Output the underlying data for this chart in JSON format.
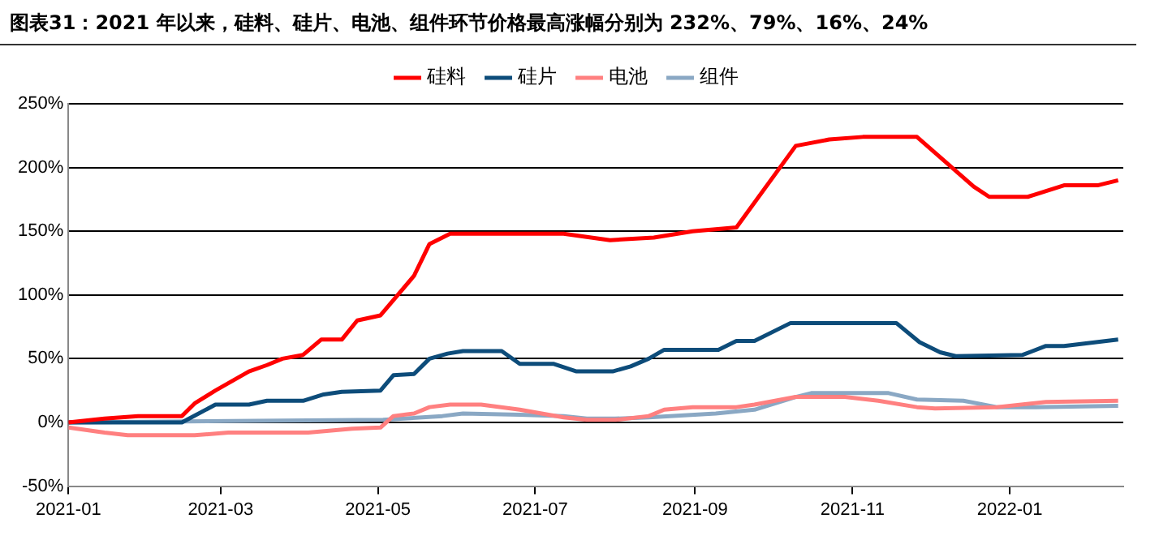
{
  "chart_data": {
    "type": "line",
    "title": "图表31：2021 年以来，硅料、硅片、电池、组件环节价格最高涨幅分别为 232%、79%、16%、24%",
    "series": [
      {
        "name": "硅料",
        "color": "#ff0000",
        "x": [
          "2021-01-01",
          "2021-01-15",
          "2021-01-28",
          "2021-02-14",
          "2021-02-19",
          "2021-02-27",
          "2021-03-12",
          "2021-03-19",
          "2021-03-25",
          "2021-04-02",
          "2021-04-09",
          "2021-04-17",
          "2021-04-23",
          "2021-05-02",
          "2021-05-15",
          "2021-05-21",
          "2021-05-29",
          "2021-06-29",
          "2021-07-12",
          "2021-07-30",
          "2021-08-16",
          "2021-08-31",
          "2021-09-17",
          "2021-10-10",
          "2021-10-23",
          "2021-11-05",
          "2021-11-26",
          "2021-12-18",
          "2021-12-24",
          "2022-01-08",
          "2022-01-22",
          "2022-02-04",
          "2022-02-12"
        ],
        "values": [
          0,
          3,
          5,
          5,
          15,
          25,
          40,
          45,
          50,
          53,
          65,
          65,
          80,
          84,
          115,
          140,
          148,
          148,
          148,
          143,
          145,
          150,
          153,
          217,
          222,
          224,
          224,
          185,
          177,
          177,
          186,
          186,
          190
        ]
      },
      {
        "name": "硅片",
        "color": "#0d4c7a",
        "x": [
          "2021-01-01",
          "2021-02-14",
          "2021-02-27",
          "2021-03-12",
          "2021-03-19",
          "2021-04-02",
          "2021-04-10",
          "2021-04-17",
          "2021-05-02",
          "2021-05-07",
          "2021-05-15",
          "2021-05-21",
          "2021-05-28",
          "2021-06-03",
          "2021-06-18",
          "2021-06-25",
          "2021-07-08",
          "2021-07-17",
          "2021-07-31",
          "2021-08-07",
          "2021-08-14",
          "2021-08-20",
          "2021-09-10",
          "2021-09-17",
          "2021-09-24",
          "2021-10-08",
          "2021-11-18",
          "2021-11-27",
          "2021-12-05",
          "2021-12-11",
          "2022-01-06",
          "2022-01-15",
          "2022-01-22",
          "2022-02-12"
        ],
        "values": [
          0,
          0,
          14,
          14,
          17,
          17,
          22,
          24,
          25,
          37,
          38,
          50,
          54,
          56,
          56,
          46,
          46,
          40,
          40,
          44,
          50,
          57,
          57,
          64,
          64,
          78,
          78,
          63,
          55,
          52,
          53,
          60,
          60,
          65
        ]
      },
      {
        "name": "电池",
        "color": "#ff8080",
        "x": [
          "2021-01-01",
          "2021-01-15",
          "2021-01-24",
          "2021-02-19",
          "2021-03-04",
          "2021-04-04",
          "2021-04-21",
          "2021-05-02",
          "2021-05-07",
          "2021-05-15",
          "2021-05-21",
          "2021-05-29",
          "2021-06-10",
          "2021-06-25",
          "2021-07-12",
          "2021-07-21",
          "2021-08-01",
          "2021-08-14",
          "2021-08-20",
          "2021-08-31",
          "2021-09-17",
          "2021-09-24",
          "2021-10-10",
          "2021-10-29",
          "2021-11-11",
          "2021-11-26",
          "2021-12-03",
          "2021-12-27",
          "2022-01-15",
          "2022-02-12"
        ],
        "values": [
          -4,
          -8,
          -10,
          -10,
          -8,
          -8,
          -5,
          -4,
          5,
          7,
          12,
          14,
          14,
          10,
          4,
          2,
          2,
          5,
          10,
          12,
          12,
          14,
          20,
          20,
          17,
          12,
          11,
          12,
          16,
          17
        ]
      },
      {
        "name": "组件",
        "color": "#8aa8c4",
        "x": [
          "2021-01-01",
          "2021-05-03",
          "2021-05-26",
          "2021-06-03",
          "2021-06-25",
          "2021-07-12",
          "2021-07-21",
          "2021-08-01",
          "2021-08-14",
          "2021-09-09",
          "2021-09-24",
          "2021-10-10",
          "2021-10-16",
          "2021-11-15",
          "2021-11-26",
          "2021-12-14",
          "2021-12-27",
          "2022-01-11",
          "2022-02-12"
        ],
        "values": [
          0,
          2,
          5,
          7,
          6,
          5,
          3,
          3,
          4,
          7,
          10,
          20,
          23,
          23,
          18,
          17,
          12,
          12,
          13
        ]
      }
    ],
    "xlim": [
      "2021-01-01",
      "2022-02-14"
    ],
    "xticks": [
      "2021-01",
      "2021-03",
      "2021-05",
      "2021-07",
      "2021-09",
      "2021-11",
      "2022-01"
    ],
    "ylim": [
      -50,
      250
    ],
    "yticks": [
      {
        "value": -50,
        "label": "-50%"
      },
      {
        "value": 0,
        "label": "0%"
      },
      {
        "value": 50,
        "label": "50%"
      },
      {
        "value": 100,
        "label": "100%"
      },
      {
        "value": 150,
        "label": "150%"
      },
      {
        "value": 200,
        "label": "200%"
      },
      {
        "value": 250,
        "label": "250%"
      }
    ],
    "grid": "y",
    "legend": "top",
    "marker": "none",
    "line_style": "solid"
  }
}
